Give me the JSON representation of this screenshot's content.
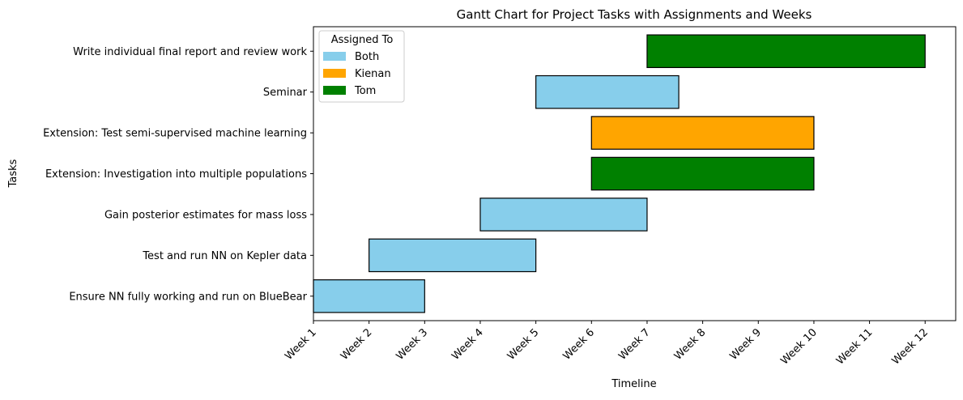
{
  "chart_data": {
    "type": "gantt",
    "title": "Gantt Chart for Project Tasks with Assignments and Weeks",
    "xlabel": "Timeline",
    "ylabel": "Tasks",
    "x_ticks": [
      "Week 1",
      "Week 2",
      "Week 3",
      "Week 4",
      "Week 5",
      "Week 6",
      "Week 7",
      "Week 8",
      "Week 9",
      "Week 10",
      "Week 11",
      "Week 12"
    ],
    "xlim": [
      1,
      12.55
    ],
    "grid": false,
    "legend": {
      "title": "Assigned To",
      "placement": "top-left",
      "entries": [
        {
          "name": "Both",
          "color": "#87CEEB"
        },
        {
          "name": "Kienan",
          "color": "#FFA500"
        },
        {
          "name": "Tom",
          "color": "#008000"
        }
      ]
    },
    "tasks": [
      {
        "name": "Ensure NN fully working and run on BlueBear",
        "start": 1,
        "end": 3,
        "assignee": "Both"
      },
      {
        "name": "Test and run NN on Kepler data",
        "start": 2,
        "end": 5,
        "assignee": "Both"
      },
      {
        "name": "Gain posterior estimates for mass loss",
        "start": 4,
        "end": 7,
        "assignee": "Both"
      },
      {
        "name": "Extension: Investigation into multiple populations",
        "start": 6,
        "end": 10,
        "assignee": "Tom"
      },
      {
        "name": "Extension: Test semi-supervised machine learning",
        "start": 6,
        "end": 10,
        "assignee": "Kienan"
      },
      {
        "name": "Seminar",
        "start": 5,
        "end": 7.57,
        "assignee": "Both"
      },
      {
        "name": "Write individual final report and review work",
        "start": 7,
        "end": 12,
        "assignee": "Tom"
      }
    ]
  }
}
